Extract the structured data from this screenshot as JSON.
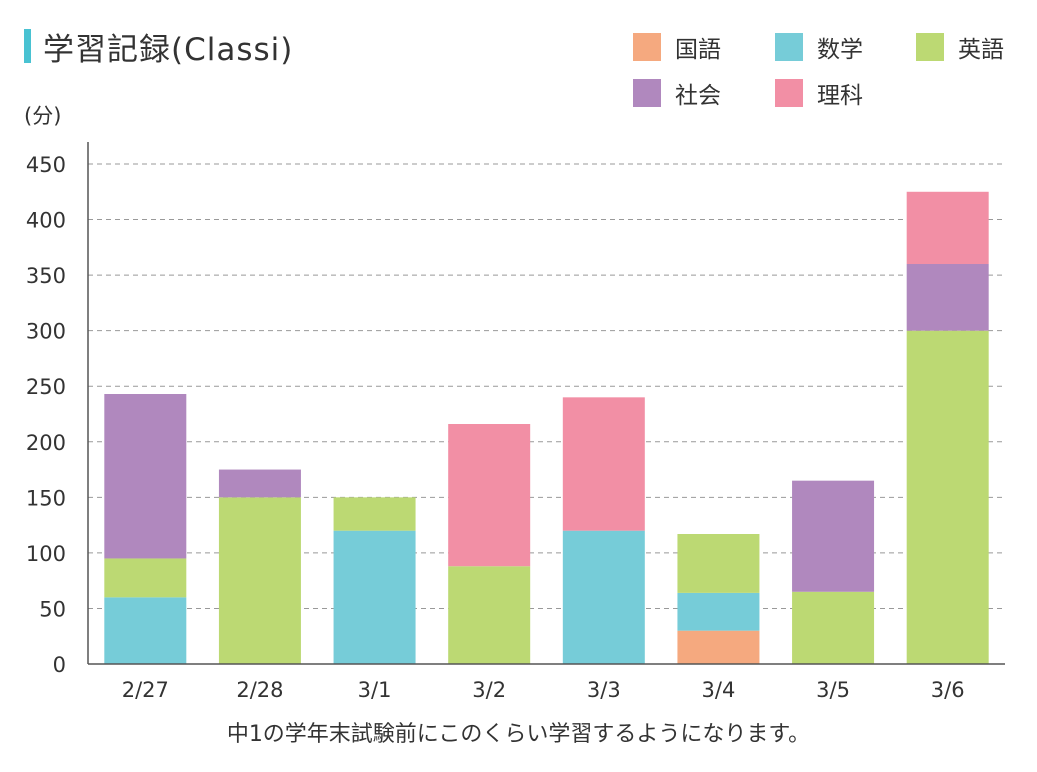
{
  "title": "学習記録(Classi)",
  "unit_label": "(分)",
  "caption": "中1の学年末試験前にこのくらい学習するようになります。",
  "colors": {
    "kokugo": "#f5a97f",
    "sugaku": "#76ccd8",
    "eigo": "#bcd973",
    "shakai": "#b088be",
    "rika": "#f28fa5",
    "grid": "#999999",
    "axis": "#555555",
    "title_accent": "#49c2d2"
  },
  "legend": [
    {
      "key": "kokugo",
      "label": "国語"
    },
    {
      "key": "sugaku",
      "label": "数学"
    },
    {
      "key": "eigo",
      "label": "英語"
    },
    {
      "key": "shakai",
      "label": "社会"
    },
    {
      "key": "rika",
      "label": "理科"
    }
  ],
  "chart_data": {
    "type": "bar",
    "stacked": true,
    "categories": [
      "2/27",
      "2/28",
      "3/1",
      "3/2",
      "3/3",
      "3/4",
      "3/5",
      "3/6"
    ],
    "series": [
      {
        "key": "kokugo",
        "name": "国語",
        "values": [
          0,
          0,
          0,
          0,
          0,
          30,
          0,
          0
        ]
      },
      {
        "key": "sugaku",
        "name": "数学",
        "values": [
          60,
          0,
          120,
          0,
          120,
          34,
          0,
          0
        ]
      },
      {
        "key": "eigo",
        "name": "英語",
        "values": [
          35,
          150,
          30,
          88,
          0,
          53,
          65,
          300
        ]
      },
      {
        "key": "shakai",
        "name": "社会",
        "values": [
          148,
          25,
          0,
          0,
          0,
          0,
          100,
          60
        ]
      },
      {
        "key": "rika",
        "name": "理科",
        "values": [
          0,
          0,
          0,
          128,
          120,
          0,
          0,
          65
        ]
      }
    ],
    "ylim": [
      0,
      450
    ],
    "yticks": [
      0,
      50,
      100,
      150,
      200,
      250,
      300,
      350,
      400,
      450
    ],
    "ylabel": "(分)",
    "xlabel": "",
    "grid": true,
    "legend_position": "top-right"
  }
}
